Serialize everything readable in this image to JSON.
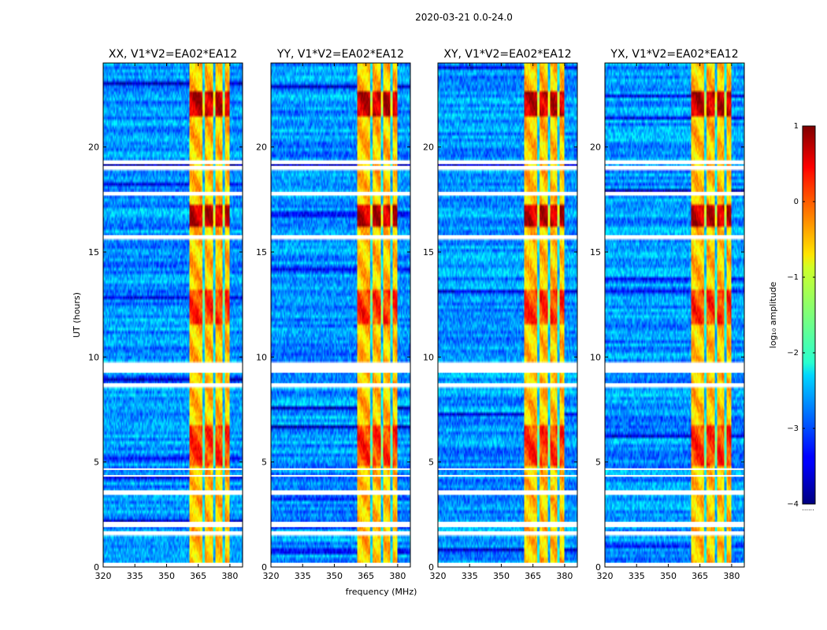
{
  "chart_data": {
    "type": "heatmap",
    "suptitle": "2020-03-21 0.0-24.0",
    "xlabel": "frequency (MHz)",
    "ylabel": "UT (hours)",
    "xlim": [
      320,
      386
    ],
    "ylim": [
      0,
      24
    ],
    "xticks": [
      "320",
      "335",
      "350",
      "365",
      "380"
    ],
    "yticks": [
      "0",
      "5",
      "10",
      "15",
      "20"
    ],
    "panels": [
      {
        "title": "XX, V1*V2=EA02*EA12"
      },
      {
        "title": "YY, V1*V2=EA02*EA12"
      },
      {
        "title": "XY, V1*V2=EA02*EA12"
      },
      {
        "title": "YX, V1*V2=EA02*EA12"
      }
    ],
    "signal_band_mhz": [
      361,
      380
    ],
    "flagged_ut_hours": [
      [
        0.05,
        0.2
      ],
      [
        1.55,
        1.7
      ],
      [
        1.9,
        2.15
      ],
      [
        3.45,
        3.65
      ],
      [
        4.3,
        4.38
      ],
      [
        4.62,
        4.7
      ],
      [
        8.6,
        8.75
      ],
      [
        9.25,
        9.7
      ],
      [
        15.65,
        15.8
      ],
      [
        17.7,
        17.85
      ],
      [
        18.95,
        19.1
      ],
      [
        19.2,
        19.35
      ]
    ],
    "colorbar": {
      "label": "log₁₀ amplitude",
      "range": [
        -4,
        1
      ],
      "ticks": [
        "1",
        "0",
        "−1",
        "−2",
        "−3",
        "−4"
      ],
      "colormap": "jet",
      "footer": "......"
    }
  }
}
